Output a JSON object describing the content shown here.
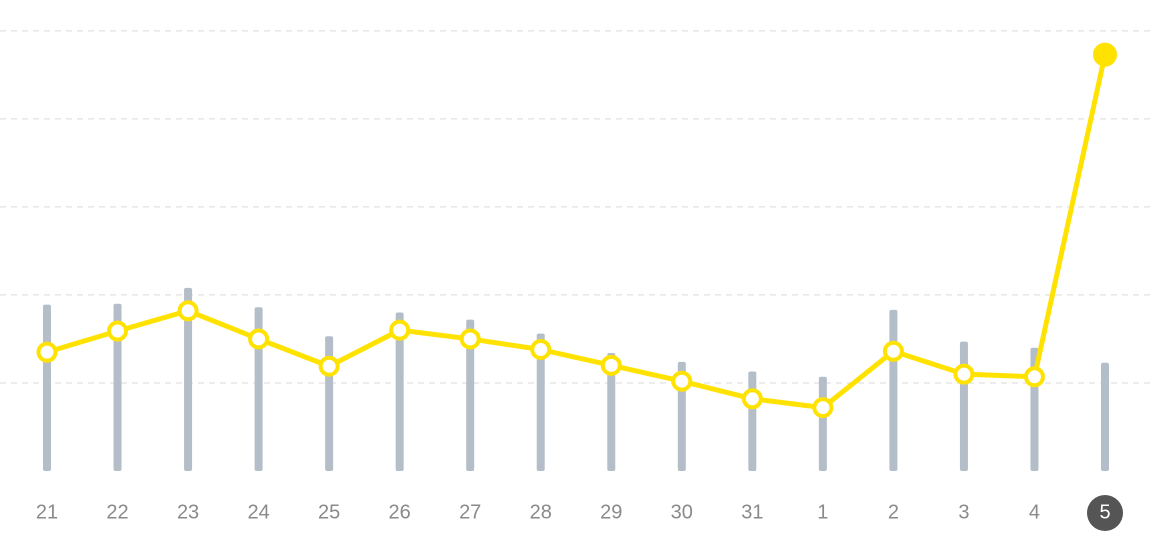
{
  "chart_data": {
    "type": "combo",
    "categories": [
      "21",
      "22",
      "23",
      "24",
      "25",
      "26",
      "27",
      "28",
      "29",
      "30",
      "31",
      "1",
      "2",
      "3",
      "4",
      "5"
    ],
    "series": [
      {
        "type": "bar",
        "color": "#b4bec8",
        "values": [
          1.89,
          1.9,
          2.08,
          1.86,
          1.53,
          1.8,
          1.72,
          1.56,
          1.34,
          1.24,
          1.13,
          1.07,
          1.83,
          1.47,
          1.4,
          1.23
        ]
      },
      {
        "type": "line",
        "color": "#ffe200",
        "values": [
          1.35,
          1.59,
          1.82,
          1.5,
          1.19,
          1.6,
          1.5,
          1.38,
          1.2,
          1.02,
          0.82,
          0.72,
          1.36,
          1.1,
          1.07,
          4.73
        ]
      }
    ],
    "ylim": [
      0,
      5.35
    ],
    "yticks": [
      1,
      2,
      3,
      4,
      5
    ],
    "grid": true,
    "selected_index": 15
  }
}
